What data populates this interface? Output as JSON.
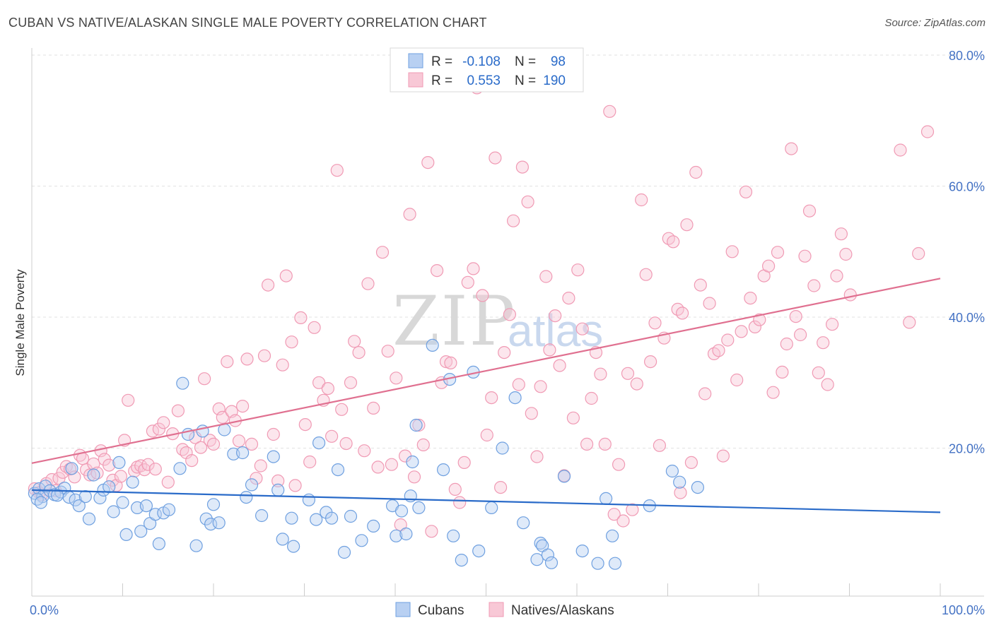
{
  "title": "CUBAN VS NATIVE/ALASKAN SINGLE MALE POVERTY CORRELATION CHART",
  "source": "Source: ZipAtlas.com",
  "watermark": {
    "zip": "ZIP",
    "atlas": "atlas"
  },
  "colors": {
    "cubans": "#6fa0e0",
    "cubans_fill": "#b8d0f2",
    "natives": "#f09ab4",
    "natives_fill": "#f8c8d6",
    "cubans_line": "#2a6bc9",
    "natives_line": "#e07090",
    "tick_text": "#4472c4"
  },
  "legend": {
    "rows": [
      {
        "r_label": "R =",
        "r_value": "-0.108",
        "n_label": "N =",
        "n_value": "98"
      },
      {
        "r_label": "R =",
        "r_value": "0.553",
        "n_label": "N =",
        "n_value": "190"
      }
    ]
  },
  "chart_data": {
    "type": "scatter",
    "title": "CUBAN VS NATIVE/ALASKAN SINGLE MALE POVERTY CORRELATION CHART",
    "xlabel": "",
    "ylabel": "Single Male Poverty",
    "xlim": [
      0,
      100
    ],
    "ylim": [
      0,
      80
    ],
    "x_tick_labels": [
      "0.0%",
      "100.0%"
    ],
    "y_tick_labels": [
      "20.0%",
      "40.0%",
      "60.0%",
      "80.0%"
    ],
    "y_ticks": [
      20,
      40,
      60,
      80
    ],
    "grid": "horizontal dashed",
    "legend_position": "top-center",
    "series": [
      {
        "name": "Cubans",
        "r": -0.108,
        "n": 98,
        "trend": {
          "x": [
            0,
            100
          ],
          "y": [
            13.6,
            10.2
          ]
        },
        "points": [
          [
            0.3,
            13.1
          ],
          [
            0.8,
            13.8
          ],
          [
            1.2,
            12.6
          ],
          [
            1.5,
            14.2
          ],
          [
            2.0,
            13.5
          ],
          [
            2.5,
            12.9
          ],
          [
            3.2,
            13.3
          ],
          [
            3.6,
            13.9
          ],
          [
            4.1,
            12.5
          ],
          [
            4.4,
            16.9
          ],
          [
            4.8,
            12.1
          ],
          [
            5.2,
            11.2
          ],
          [
            5.9,
            12.6
          ],
          [
            6.3,
            9.2
          ],
          [
            6.8,
            15.9
          ],
          [
            7.5,
            12.4
          ],
          [
            7.9,
            13.6
          ],
          [
            8.5,
            14.1
          ],
          [
            9.0,
            10.3
          ],
          [
            9.6,
            17.8
          ],
          [
            10.0,
            11.7
          ],
          [
            10.4,
            6.8
          ],
          [
            11.1,
            14.8
          ],
          [
            11.6,
            10.9
          ],
          [
            12.0,
            7.3
          ],
          [
            12.6,
            11.2
          ],
          [
            13.0,
            8.5
          ],
          [
            13.6,
            9.9
          ],
          [
            14.0,
            5.4
          ],
          [
            14.5,
            10.1
          ],
          [
            15.1,
            10.6
          ],
          [
            16.3,
            16.9
          ],
          [
            16.6,
            29.9
          ],
          [
            17.2,
            22.1
          ],
          [
            18.1,
            5.1
          ],
          [
            18.8,
            22.6
          ],
          [
            19.2,
            9.2
          ],
          [
            19.7,
            8.4
          ],
          [
            20.0,
            11.4
          ],
          [
            20.6,
            8.6
          ],
          [
            21.2,
            22.8
          ],
          [
            22.2,
            19.1
          ],
          [
            23.2,
            19.3
          ],
          [
            23.6,
            12.5
          ],
          [
            24.2,
            14.4
          ],
          [
            25.3,
            9.7
          ],
          [
            26.6,
            18.7
          ],
          [
            27.1,
            13.6
          ],
          [
            27.6,
            6.1
          ],
          [
            28.6,
            9.3
          ],
          [
            28.8,
            5.0
          ],
          [
            30.5,
            12.1
          ],
          [
            31.3,
            9.1
          ],
          [
            31.6,
            20.8
          ],
          [
            32.4,
            10.2
          ],
          [
            33.0,
            9.3
          ],
          [
            33.7,
            16.7
          ],
          [
            34.4,
            4.1
          ],
          [
            35.1,
            9.6
          ],
          [
            36.3,
            5.9
          ],
          [
            37.6,
            8.1
          ],
          [
            39.7,
            11.2
          ],
          [
            40.1,
            6.6
          ],
          [
            40.7,
            10.4
          ],
          [
            41.2,
            6.9
          ],
          [
            41.7,
            12.7
          ],
          [
            41.9,
            17.9
          ],
          [
            42.3,
            23.5
          ],
          [
            42.6,
            10.9
          ],
          [
            44.1,
            35.7
          ],
          [
            45.3,
            16.7
          ],
          [
            46.0,
            30.5
          ],
          [
            46.4,
            6.6
          ],
          [
            47.3,
            2.9
          ],
          [
            48.6,
            31.6
          ],
          [
            49.2,
            4.3
          ],
          [
            50.6,
            10.9
          ],
          [
            51.8,
            20.0
          ],
          [
            53.2,
            27.7
          ],
          [
            54.1,
            8.6
          ],
          [
            55.6,
            3.0
          ],
          [
            56.0,
            5.5
          ],
          [
            56.2,
            5.1
          ],
          [
            56.8,
            3.7
          ],
          [
            57.2,
            2.5
          ],
          [
            58.6,
            15.7
          ],
          [
            60.6,
            4.3
          ],
          [
            62.3,
            2.4
          ],
          [
            63.2,
            12.3
          ],
          [
            63.9,
            6.6
          ],
          [
            64.2,
            2.4
          ],
          [
            68.0,
            11.2
          ],
          [
            70.5,
            16.5
          ],
          [
            71.3,
            14.8
          ],
          [
            73.3,
            14.0
          ],
          [
            0.6,
            12.2
          ],
          [
            1.0,
            11.7
          ],
          [
            2.8,
            12.8
          ]
        ]
      },
      {
        "name": "Natives/Alaskans",
        "r": 0.553,
        "n": 190,
        "trend": {
          "x": [
            0,
            100
          ],
          "y": [
            17.7,
            45.9
          ]
        },
        "points": [
          [
            0.3,
            13.8
          ],
          [
            0.8,
            13.2
          ],
          [
            1.1,
            12.9
          ],
          [
            1.6,
            14.6
          ],
          [
            2.2,
            15.2
          ],
          [
            2.6,
            13.5
          ],
          [
            3.0,
            15.4
          ],
          [
            3.4,
            16.3
          ],
          [
            3.8,
            17.2
          ],
          [
            4.2,
            16.8
          ],
          [
            4.7,
            15.6
          ],
          [
            5.3,
            18.9
          ],
          [
            5.6,
            18.4
          ],
          [
            6.0,
            16.7
          ],
          [
            6.4,
            15.9
          ],
          [
            6.8,
            17.6
          ],
          [
            7.2,
            16.2
          ],
          [
            7.6,
            19.6
          ],
          [
            8.0,
            18.3
          ],
          [
            8.5,
            17.4
          ],
          [
            8.9,
            15.1
          ],
          [
            9.3,
            14.3
          ],
          [
            9.8,
            15.7
          ],
          [
            10.2,
            21.2
          ],
          [
            10.6,
            27.3
          ],
          [
            11.3,
            16.5
          ],
          [
            11.6,
            17.1
          ],
          [
            12.0,
            17.3
          ],
          [
            12.4,
            16.7
          ],
          [
            12.8,
            17.5
          ],
          [
            13.3,
            22.6
          ],
          [
            13.6,
            16.8
          ],
          [
            14.0,
            22.9
          ],
          [
            14.5,
            23.9
          ],
          [
            15.0,
            14.8
          ],
          [
            15.5,
            22.2
          ],
          [
            16.1,
            25.7
          ],
          [
            16.6,
            19.8
          ],
          [
            17.0,
            19.3
          ],
          [
            17.6,
            18.1
          ],
          [
            18.0,
            21.6
          ],
          [
            18.6,
            20.1
          ],
          [
            19.0,
            30.6
          ],
          [
            19.6,
            21.2
          ],
          [
            20.0,
            20.6
          ],
          [
            20.6,
            26.0
          ],
          [
            21.0,
            24.7
          ],
          [
            21.5,
            33.2
          ],
          [
            22.0,
            25.6
          ],
          [
            22.4,
            24.2
          ],
          [
            22.8,
            21.1
          ],
          [
            23.2,
            26.4
          ],
          [
            23.7,
            33.6
          ],
          [
            24.2,
            20.6
          ],
          [
            24.7,
            15.4
          ],
          [
            25.2,
            17.3
          ],
          [
            25.6,
            34.1
          ],
          [
            26.0,
            44.9
          ],
          [
            26.6,
            22.1
          ],
          [
            27.1,
            15.0
          ],
          [
            27.6,
            32.7
          ],
          [
            28.0,
            46.3
          ],
          [
            28.6,
            36.2
          ],
          [
            29.0,
            14.3
          ],
          [
            29.6,
            39.9
          ],
          [
            30.1,
            23.6
          ],
          [
            30.6,
            17.9
          ],
          [
            31.1,
            38.4
          ],
          [
            31.6,
            30.0
          ],
          [
            32.1,
            27.3
          ],
          [
            32.6,
            29.1
          ],
          [
            33.0,
            21.8
          ],
          [
            33.6,
            62.4
          ],
          [
            34.1,
            25.9
          ],
          [
            34.6,
            20.7
          ],
          [
            35.1,
            30.0
          ],
          [
            35.5,
            36.3
          ],
          [
            36.0,
            34.6
          ],
          [
            36.6,
            19.6
          ],
          [
            37.0,
            45.1
          ],
          [
            37.6,
            26.1
          ],
          [
            38.1,
            17.1
          ],
          [
            38.6,
            49.9
          ],
          [
            39.2,
            34.8
          ],
          [
            39.6,
            17.5
          ],
          [
            40.1,
            30.7
          ],
          [
            40.6,
            8.3
          ],
          [
            41.1,
            18.8
          ],
          [
            41.6,
            55.7
          ],
          [
            42.1,
            15.6
          ],
          [
            42.6,
            23.5
          ],
          [
            43.1,
            20.5
          ],
          [
            43.6,
            63.6
          ],
          [
            44.0,
            7.3
          ],
          [
            44.6,
            47.1
          ],
          [
            45.1,
            30.0
          ],
          [
            45.6,
            33.2
          ],
          [
            46.1,
            33.0
          ],
          [
            46.6,
            13.7
          ],
          [
            47.1,
            11.7
          ],
          [
            47.6,
            17.8
          ],
          [
            48.0,
            45.3
          ],
          [
            48.6,
            47.4
          ],
          [
            49.0,
            75.0
          ],
          [
            49.6,
            43.3
          ],
          [
            50.1,
            22.0
          ],
          [
            50.6,
            27.7
          ],
          [
            51.0,
            64.3
          ],
          [
            51.6,
            14.0
          ],
          [
            52.0,
            34.6
          ],
          [
            52.6,
            40.4
          ],
          [
            53.0,
            54.7
          ],
          [
            53.6,
            29.7
          ],
          [
            54.0,
            62.9
          ],
          [
            54.6,
            57.6
          ],
          [
            55.0,
            25.3
          ],
          [
            55.6,
            18.7
          ],
          [
            56.0,
            29.4
          ],
          [
            56.6,
            46.2
          ],
          [
            57.0,
            35.0
          ],
          [
            57.6,
            40.2
          ],
          [
            58.1,
            32.6
          ],
          [
            58.6,
            15.8
          ],
          [
            59.1,
            42.9
          ],
          [
            59.6,
            24.6
          ],
          [
            60.1,
            47.2
          ],
          [
            60.6,
            38.2
          ],
          [
            61.1,
            20.6
          ],
          [
            61.6,
            27.6
          ],
          [
            62.1,
            34.6
          ],
          [
            62.6,
            31.3
          ],
          [
            63.1,
            20.6
          ],
          [
            63.6,
            71.4
          ],
          [
            64.1,
            9.9
          ],
          [
            64.6,
            17.5
          ],
          [
            65.1,
            8.9
          ],
          [
            65.6,
            31.4
          ],
          [
            66.1,
            10.6
          ],
          [
            66.6,
            29.8
          ],
          [
            67.1,
            57.9
          ],
          [
            67.6,
            46.5
          ],
          [
            68.1,
            33.2
          ],
          [
            68.6,
            39.1
          ],
          [
            69.1,
            20.4
          ],
          [
            69.6,
            36.8
          ],
          [
            70.1,
            52.0
          ],
          [
            70.6,
            51.5
          ],
          [
            71.1,
            41.2
          ],
          [
            71.6,
            40.6
          ],
          [
            72.1,
            54.1
          ],
          [
            72.6,
            17.8
          ],
          [
            73.1,
            62.1
          ],
          [
            73.6,
            44.9
          ],
          [
            74.1,
            28.3
          ],
          [
            74.6,
            42.1
          ],
          [
            75.1,
            34.4
          ],
          [
            75.6,
            34.9
          ],
          [
            76.1,
            18.8
          ],
          [
            76.6,
            36.5
          ],
          [
            77.1,
            50.0
          ],
          [
            77.6,
            30.4
          ],
          [
            78.1,
            37.8
          ],
          [
            78.6,
            59.1
          ],
          [
            79.1,
            42.9
          ],
          [
            79.6,
            38.5
          ],
          [
            80.1,
            39.6
          ],
          [
            80.6,
            46.3
          ],
          [
            81.1,
            47.8
          ],
          [
            81.6,
            28.5
          ],
          [
            82.1,
            49.9
          ],
          [
            82.6,
            31.6
          ],
          [
            83.1,
            35.9
          ],
          [
            83.6,
            65.7
          ],
          [
            84.1,
            40.1
          ],
          [
            84.6,
            37.3
          ],
          [
            85.1,
            49.3
          ],
          [
            85.6,
            56.2
          ],
          [
            86.1,
            44.8
          ],
          [
            86.6,
            31.5
          ],
          [
            87.1,
            36.1
          ],
          [
            87.6,
            29.7
          ],
          [
            88.1,
            38.9
          ],
          [
            88.6,
            46.3
          ],
          [
            89.1,
            52.7
          ],
          [
            89.6,
            49.6
          ],
          [
            90.1,
            43.4
          ],
          [
            95.6,
            65.5
          ],
          [
            96.6,
            39.2
          ],
          [
            97.6,
            49.7
          ],
          [
            98.6,
            68.3
          ],
          [
            71.4,
            13.2
          ]
        ]
      }
    ]
  },
  "bottom_legend": [
    "Cubans",
    "Natives/Alaskans"
  ]
}
